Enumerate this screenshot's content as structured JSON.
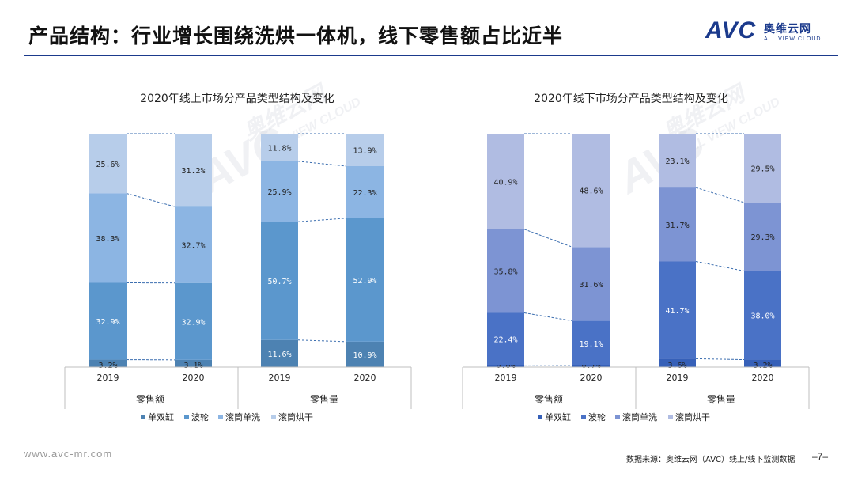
{
  "header": {
    "title": "产品结构：行业增长围绕洗烘一体机，线下零售额占比近半"
  },
  "logo": {
    "mark": "AVC",
    "cn": "奥维云网",
    "en": "ALL VIEW CLOUD"
  },
  "watermark": {
    "mark": "AVC",
    "cn": "奥维云网",
    "en": "ALL VIEW CLOUD"
  },
  "footer": {
    "url": "www.avc-mr.com",
    "source": "数据来源：奥维云网（AVC）线上/线下监测数据",
    "page": "–7–"
  },
  "colors": {
    "online": [
      "#4d82b2",
      "#5b97cd",
      "#8cb5e3",
      "#b7cdea"
    ],
    "offline": [
      "#3660b8",
      "#4a72c6",
      "#7d94d3",
      "#b0bce2"
    ]
  },
  "chart_data": [
    {
      "type": "bar",
      "stacked": true,
      "title": "2020年线上市场分产品类型结构及变化",
      "series_names": [
        "单双缸",
        "波轮",
        "滚筒单洗",
        "滚筒烘干"
      ],
      "groups": [
        {
          "label": "零售额",
          "bars": [
            {
              "category": "2019",
              "values": [
                3.2,
                32.9,
                38.3,
                25.6
              ],
              "labels": [
                "3.2%",
                "32.9%",
                "38.3%",
                "25.6%"
              ]
            },
            {
              "category": "2020",
              "values": [
                3.1,
                32.9,
                32.7,
                31.2
              ],
              "labels": [
                "3.1%",
                "32.9%",
                "32.7%",
                "31.2%"
              ]
            }
          ]
        },
        {
          "label": "零售量",
          "bars": [
            {
              "category": "2019",
              "values": [
                11.6,
                50.7,
                25.9,
                11.8
              ],
              "labels": [
                "11.6%",
                "50.7%",
                "25.9%",
                "11.8%"
              ]
            },
            {
              "category": "2020",
              "values": [
                10.9,
                52.9,
                22.3,
                13.9
              ],
              "labels": [
                "10.9%",
                "52.9%",
                "22.3%",
                "13.9%"
              ]
            }
          ]
        }
      ],
      "ylim": [
        0,
        100
      ]
    },
    {
      "type": "bar",
      "stacked": true,
      "title": "2020年线下市场分产品类型结构及变化",
      "series_names": [
        "单双缸",
        "波轮",
        "滚筒单洗",
        "滚筒烘干"
      ],
      "groups": [
        {
          "label": "零售额",
          "bars": [
            {
              "category": "2019",
              "values": [
                0.8,
                22.4,
                35.8,
                40.9
              ],
              "labels": [
                "0.8%",
                "22.4%",
                "35.8%",
                "40.9%"
              ]
            },
            {
              "category": "2020",
              "values": [
                0.7,
                19.1,
                31.6,
                48.6
              ],
              "labels": [
                "0.7%",
                "19.1%",
                "31.6%",
                "48.6%"
              ]
            }
          ]
        },
        {
          "label": "零售量",
          "bars": [
            {
              "category": "2019",
              "values": [
                3.6,
                41.7,
                31.7,
                23.1
              ],
              "labels": [
                "3.6%",
                "41.7%",
                "31.7%",
                "23.1%"
              ]
            },
            {
              "category": "2020",
              "values": [
                3.2,
                38.0,
                29.3,
                29.5
              ],
              "labels": [
                "3.2%",
                "38.0%",
                "29.3%",
                "29.5%"
              ]
            }
          ]
        }
      ],
      "ylim": [
        0,
        100
      ]
    }
  ]
}
